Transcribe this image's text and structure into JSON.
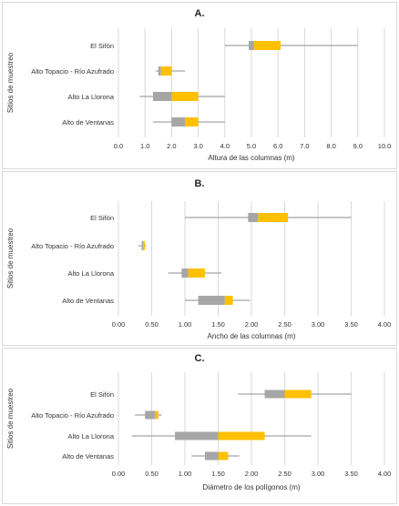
{
  "chart_data": [
    {
      "type": "boxplot",
      "title": "A.",
      "xlabel": "Altura de las columnas (m)",
      "ylabel": "Sitios de muestreo",
      "xlim": [
        0,
        10
      ],
      "ticks": [
        "0.0",
        "1.0",
        "2.0",
        "3.0",
        "4.0",
        "5.0",
        "6.0",
        "7.0",
        "8.0",
        "9.0",
        "10.0"
      ],
      "tick_values": [
        0,
        1,
        2,
        3,
        4,
        5,
        6,
        7,
        8,
        9,
        10
      ],
      "grid": true,
      "categories": [
        "El Sifón",
        "Alto Topacio - Río Azufrado",
        "Alto La Llorona",
        "Alto de Ventanas"
      ],
      "boxes": [
        {
          "min": 4.0,
          "q1": 4.9,
          "median": 5.1,
          "q3": 6.1,
          "max": 9.0
        },
        {
          "min": 1.4,
          "q1": 1.5,
          "median": 1.6,
          "q3": 2.0,
          "max": 2.5
        },
        {
          "min": 0.8,
          "q1": 1.3,
          "median": 2.0,
          "q3": 3.0,
          "max": 4.0
        },
        {
          "min": 1.3,
          "q1": 2.0,
          "median": 2.5,
          "q3": 3.0,
          "max": 4.0
        }
      ],
      "colors": {
        "lower_box": "#a6a6a6",
        "upper_box": "#ffc000",
        "whisker": "#8c8c8c"
      }
    },
    {
      "type": "boxplot",
      "title": "B.",
      "xlabel": "Ancho de las columnas (m)",
      "ylabel": "Sitios de muestreo",
      "xlim": [
        0,
        4
      ],
      "ticks": [
        "0.00",
        "0.50",
        "1.00",
        "1.50",
        "2.00",
        "2.50",
        "3.00",
        "3.50",
        "4.00"
      ],
      "tick_values": [
        0,
        0.5,
        1,
        1.5,
        2,
        2.5,
        3,
        3.5,
        4
      ],
      "grid": true,
      "categories": [
        "El Sifón",
        "Alto Topacio - Río Azufrado",
        "Alto La Llorona",
        "Alto de Ventanas"
      ],
      "boxes": [
        {
          "min": 1.0,
          "q1": 1.95,
          "median": 2.1,
          "q3": 2.55,
          "max": 3.5
        },
        {
          "min": 0.3,
          "q1": 0.35,
          "median": 0.37,
          "q3": 0.4,
          "max": 0.42
        },
        {
          "min": 0.75,
          "q1": 0.95,
          "median": 1.05,
          "q3": 1.3,
          "max": 1.55
        },
        {
          "min": 1.0,
          "q1": 1.2,
          "median": 1.6,
          "q3": 1.72,
          "max": 1.98
        }
      ],
      "colors": {
        "lower_box": "#a6a6a6",
        "upper_box": "#ffc000",
        "whisker": "#8c8c8c"
      }
    },
    {
      "type": "boxplot",
      "title": "C.",
      "xlabel": "Diámetro de los polígonos (m)",
      "ylabel": "Sitios de muestreo",
      "xlim": [
        0,
        4
      ],
      "ticks": [
        "0.00",
        "0.50",
        "1.00",
        "1.50",
        "2.00",
        "2.50",
        "3.00",
        "3.50",
        "4.00"
      ],
      "tick_values": [
        0,
        0.5,
        1,
        1.5,
        2,
        2.5,
        3,
        3.5,
        4
      ],
      "grid": true,
      "categories": [
        "El Sifón",
        "Alto Topacio - Río Azufrado",
        "Alto La Llorona",
        "Alto de Ventanas"
      ],
      "boxes": [
        {
          "min": 1.8,
          "q1": 2.2,
          "median": 2.5,
          "q3": 2.9,
          "max": 3.5
        },
        {
          "min": 0.25,
          "q1": 0.4,
          "median": 0.55,
          "q3": 0.6,
          "max": 0.65
        },
        {
          "min": 0.2,
          "q1": 0.85,
          "median": 1.5,
          "q3": 2.2,
          "max": 2.9
        },
        {
          "min": 1.1,
          "q1": 1.3,
          "median": 1.5,
          "q3": 1.65,
          "max": 1.82
        }
      ],
      "colors": {
        "lower_box": "#a6a6a6",
        "upper_box": "#ffc000",
        "whisker": "#8c8c8c"
      }
    }
  ]
}
